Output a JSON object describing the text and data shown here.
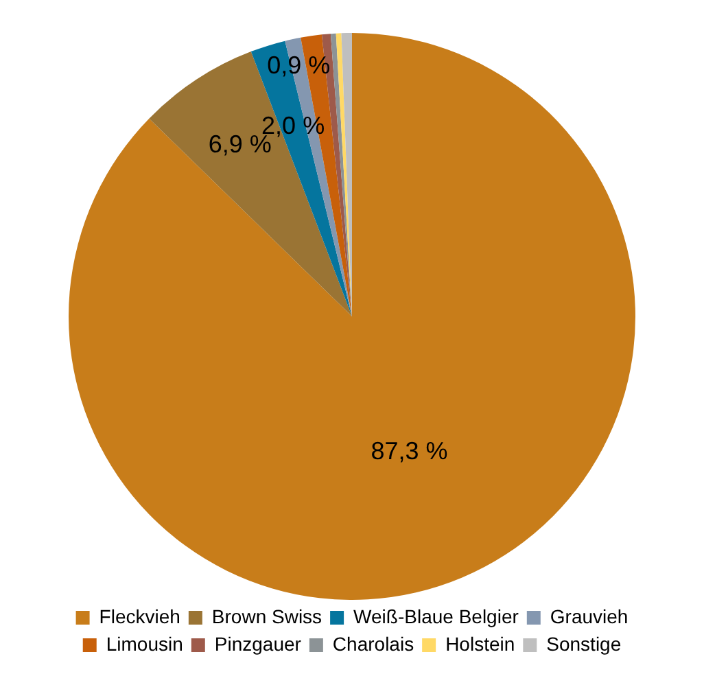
{
  "chart_data": {
    "type": "pie",
    "categories": [
      "Fleckvieh",
      "Brown Swiss",
      "Weiß-Blaue Belgier",
      "Grauvieh",
      "Limousin",
      "Pinzgauer",
      "Charolais",
      "Holstein",
      "Sonstige"
    ],
    "values": [
      87.3,
      6.9,
      2.0,
      0.9,
      1.2,
      0.5,
      0.3,
      0.3,
      0.6
    ],
    "colors": [
      "#c87d1a",
      "#9a7434",
      "#05759e",
      "#8497b0",
      "#c8600a",
      "#9e5a4a",
      "#8c9396",
      "#ffd966",
      "#bfbfbf"
    ],
    "value_labels": [
      "87,3 %",
      "6,9 %",
      "2,0 %",
      "0,9 %",
      null,
      null,
      null,
      null,
      null
    ],
    "legend": "bottom"
  }
}
